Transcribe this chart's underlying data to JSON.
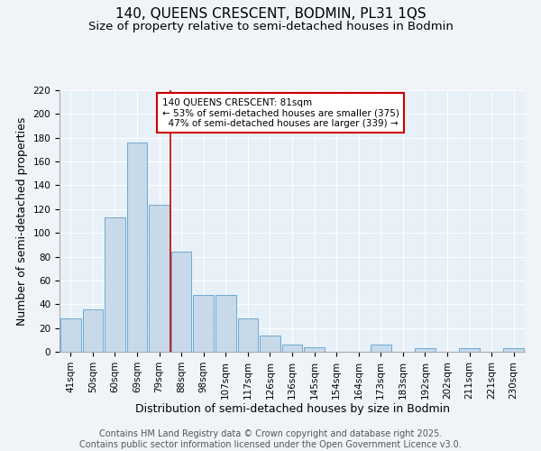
{
  "title1": "140, QUEENS CRESCENT, BODMIN, PL31 1QS",
  "title2": "Size of property relative to semi-detached houses in Bodmin",
  "xlabel": "Distribution of semi-detached houses by size in Bodmin",
  "ylabel": "Number of semi-detached properties",
  "categories": [
    "41sqm",
    "50sqm",
    "60sqm",
    "69sqm",
    "79sqm",
    "88sqm",
    "98sqm",
    "107sqm",
    "117sqm",
    "126sqm",
    "136sqm",
    "145sqm",
    "154sqm",
    "164sqm",
    "173sqm",
    "183sqm",
    "192sqm",
    "202sqm",
    "211sqm",
    "221sqm",
    "230sqm"
  ],
  "values": [
    28,
    36,
    113,
    176,
    124,
    84,
    48,
    48,
    28,
    14,
    6,
    4,
    0,
    0,
    6,
    0,
    3,
    0,
    3,
    0,
    3
  ],
  "bar_color": "#c8d9ea",
  "bar_edge_color": "#6aaad4",
  "vline_x_index": 4.5,
  "annotation_box_color": "#cc0000",
  "property_label": "140 QUEENS CRESCENT: 81sqm",
  "pct_smaller": 53,
  "n_smaller": 375,
  "pct_larger": 47,
  "n_larger": 339,
  "ylim": [
    0,
    220
  ],
  "yticks": [
    0,
    20,
    40,
    60,
    80,
    100,
    120,
    140,
    160,
    180,
    200,
    220
  ],
  "background_color": "#e8f0f8",
  "fig_background_color": "#f0f4f8",
  "footer_line1": "Contains HM Land Registry data © Crown copyright and database right 2025.",
  "footer_line2": "Contains public sector information licensed under the Open Government Licence v3.0.",
  "title_fontsize": 11,
  "subtitle_fontsize": 9.5,
  "axis_label_fontsize": 9,
  "tick_fontsize": 7.5,
  "ann_fontsize": 7.5,
  "footer_fontsize": 7
}
